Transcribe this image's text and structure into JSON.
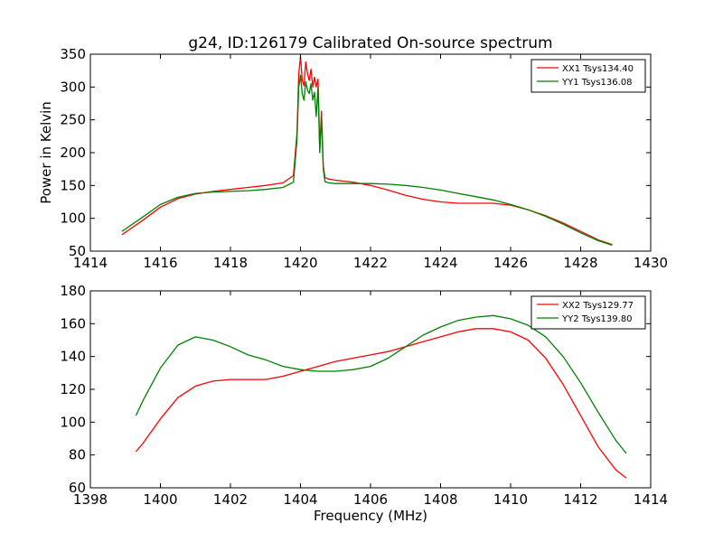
{
  "figure": {
    "title": "g24, ID:126179 Calibrated On-source spectrum"
  },
  "chart_data": [
    {
      "type": "line",
      "title": "g24, ID:126179 Calibrated On-source spectrum",
      "xlabel": "",
      "ylabel": "Power in Kelvin",
      "xlim": [
        1414,
        1430
      ],
      "ylim": [
        50,
        350
      ],
      "xticks": [
        "1414",
        "1416",
        "1418",
        "1420",
        "1422",
        "1424",
        "1426",
        "1428",
        "1430"
      ],
      "yticks": [
        "50",
        "100",
        "150",
        "200",
        "250",
        "300",
        "350"
      ],
      "legend_position": "top-right",
      "series": [
        {
          "name": "XX1 Tsys134.40",
          "color": "#ff0000",
          "x": [
            1414.9,
            1415.5,
            1416.0,
            1416.5,
            1417.0,
            1417.5,
            1418.0,
            1418.5,
            1419.0,
            1419.5,
            1419.8,
            1419.9,
            1419.95,
            1420.0,
            1420.05,
            1420.1,
            1420.15,
            1420.2,
            1420.25,
            1420.3,
            1420.35,
            1420.4,
            1420.45,
            1420.5,
            1420.55,
            1420.6,
            1420.65,
            1420.7,
            1420.8,
            1421.0,
            1421.5,
            1422.0,
            1422.5,
            1423.0,
            1423.5,
            1424.0,
            1424.5,
            1425.0,
            1425.5,
            1426.0,
            1426.5,
            1427.0,
            1427.5,
            1428.0,
            1428.5,
            1428.9
          ],
          "y": [
            75,
            97,
            117,
            130,
            137,
            141,
            144,
            147,
            150,
            154,
            165,
            230,
            320,
            347,
            310,
            302,
            338,
            320,
            310,
            327,
            300,
            315,
            300,
            312,
            205,
            263,
            180,
            162,
            160,
            158,
            155,
            150,
            143,
            135,
            129,
            125,
            123,
            123,
            123,
            120,
            113,
            104,
            93,
            80,
            67,
            60
          ]
        },
        {
          "name": "YY1 Tsys136.08",
          "color": "#008000",
          "x": [
            1414.9,
            1415.5,
            1416.0,
            1416.5,
            1417.0,
            1417.5,
            1418.0,
            1418.5,
            1419.0,
            1419.5,
            1419.8,
            1419.9,
            1419.95,
            1420.0,
            1420.05,
            1420.1,
            1420.15,
            1420.2,
            1420.25,
            1420.3,
            1420.35,
            1420.4,
            1420.45,
            1420.5,
            1420.55,
            1420.6,
            1420.65,
            1420.7,
            1420.8,
            1421.0,
            1421.5,
            1422.0,
            1422.5,
            1423.0,
            1423.5,
            1424.0,
            1424.5,
            1425.0,
            1425.5,
            1426.0,
            1426.5,
            1427.0,
            1427.5,
            1428.0,
            1428.5,
            1428.9
          ],
          "y": [
            80,
            102,
            121,
            132,
            138,
            140,
            141,
            142,
            144,
            147,
            155,
            220,
            300,
            318,
            290,
            280,
            308,
            295,
            290,
            305,
            280,
            292,
            255,
            300,
            200,
            255,
            175,
            156,
            154,
            153,
            153,
            153,
            152,
            150,
            147,
            143,
            138,
            133,
            128,
            121,
            113,
            103,
            91,
            78,
            66,
            59
          ]
        }
      ]
    },
    {
      "type": "line",
      "title": "",
      "xlabel": "Frequency (MHz)",
      "ylabel": "",
      "xlim": [
        1398,
        1414
      ],
      "ylim": [
        60,
        180
      ],
      "xticks": [
        "1398",
        "1400",
        "1402",
        "1404",
        "1406",
        "1408",
        "1410",
        "1412",
        "1414"
      ],
      "yticks": [
        "60",
        "80",
        "100",
        "120",
        "140",
        "160",
        "180"
      ],
      "legend_position": "top-right",
      "series": [
        {
          "name": "XX2 Tsys129.77",
          "color": "#ff0000",
          "x": [
            1399.3,
            1399.5,
            1400.0,
            1400.5,
            1401.0,
            1401.5,
            1402.0,
            1402.5,
            1403.0,
            1403.5,
            1404.0,
            1404.5,
            1405.0,
            1405.5,
            1406.0,
            1406.5,
            1407.0,
            1407.5,
            1408.0,
            1408.5,
            1409.0,
            1409.5,
            1410.0,
            1410.5,
            1411.0,
            1411.5,
            1412.0,
            1412.5,
            1413.0,
            1413.3
          ],
          "y": [
            82,
            87,
            102,
            115,
            122,
            125,
            126,
            126,
            126,
            128,
            131,
            134,
            137,
            139,
            141,
            143,
            146,
            149,
            152,
            155,
            157,
            157,
            155,
            150,
            139,
            123,
            104,
            85,
            71,
            66
          ]
        },
        {
          "name": "YY2 Tsys139.80",
          "color": "#008000",
          "x": [
            1399.3,
            1399.5,
            1400.0,
            1400.5,
            1401.0,
            1401.5,
            1402.0,
            1402.5,
            1403.0,
            1403.5,
            1404.0,
            1404.5,
            1405.0,
            1405.5,
            1406.0,
            1406.5,
            1407.0,
            1407.5,
            1408.0,
            1408.5,
            1409.0,
            1409.5,
            1410.0,
            1410.5,
            1411.0,
            1411.5,
            1412.0,
            1412.5,
            1413.0,
            1413.3
          ],
          "y": [
            104,
            113,
            133,
            147,
            152,
            150,
            146,
            141,
            138,
            134,
            132,
            131,
            131,
            132,
            134,
            139,
            146,
            153,
            158,
            162,
            164,
            165,
            163,
            159,
            152,
            140,
            124,
            106,
            89,
            81
          ]
        }
      ]
    }
  ]
}
